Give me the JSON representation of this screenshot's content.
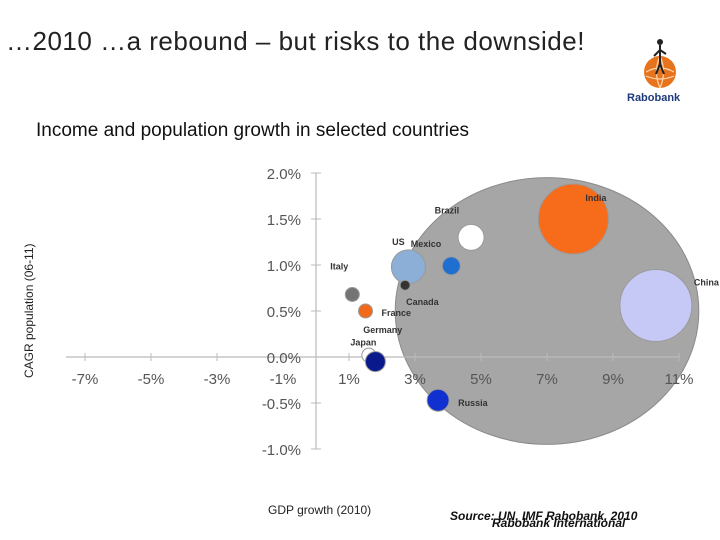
{
  "slide": {
    "title": "…2010 …a rebound – but risks to the downside!",
    "logo_text": "Rabobank",
    "source_line1": "Source: UN, IMF Rabobank, 2010",
    "source_line2": "Rabobank International"
  },
  "chart_data": {
    "type": "scatter",
    "subtype": "bubble",
    "title": "Income and population growth in selected countries",
    "xlabel": "GDP growth (2010)",
    "ylabel": "CAGR population (06-11)",
    "xlim": [
      -8.0,
      11.0
    ],
    "ylim": [
      -1.0,
      2.0
    ],
    "x_ticks": [
      {
        "value": -7,
        "label": "-7%"
      },
      {
        "value": -5,
        "label": "-5%"
      },
      {
        "value": -3,
        "label": "-3%"
      },
      {
        "value": -1,
        "label": "-1%"
      },
      {
        "value": 1,
        "label": "1%"
      },
      {
        "value": 3,
        "label": "3%"
      },
      {
        "value": 5,
        "label": "5%"
      },
      {
        "value": 7,
        "label": "7%"
      },
      {
        "value": 9,
        "label": "9%"
      },
      {
        "value": 11,
        "label": "11%"
      }
    ],
    "y_ticks": [
      {
        "value": 2.0,
        "label": "2.0%"
      },
      {
        "value": 1.5,
        "label": "1.5%"
      },
      {
        "value": 1.0,
        "label": "1.0%"
      },
      {
        "value": 0.5,
        "label": "0.5%"
      },
      {
        "value": 0.0,
        "label": "0.0%"
      },
      {
        "value": -0.5,
        "label": "-0.5%"
      },
      {
        "value": -1.0,
        "label": "-1.0%"
      }
    ],
    "grid": false,
    "points": [
      {
        "name": "India",
        "x": 7.8,
        "y": 1.5,
        "size": 35,
        "color": "#f76c1b"
      },
      {
        "name": "China",
        "x": 10.3,
        "y": 0.56,
        "size": 36,
        "color": "#c6c9f6"
      },
      {
        "name": "Brazil",
        "x": 4.7,
        "y": 1.3,
        "size": 13,
        "color": "#ffffff"
      },
      {
        "name": "US",
        "x": 2.8,
        "y": 0.98,
        "size": 17,
        "color": "#8bafd6"
      },
      {
        "name": "Mexico",
        "x": 4.1,
        "y": 0.99,
        "size": 9,
        "color": "#1f6fd0"
      },
      {
        "name": "Italy",
        "x": 1.1,
        "y": 0.68,
        "size": 7,
        "color": "#747474"
      },
      {
        "name": "Canada",
        "x": 2.7,
        "y": 0.78,
        "size": 5,
        "color": "#333333"
      },
      {
        "name": "France",
        "x": 1.5,
        "y": 0.5,
        "size": 7,
        "color": "#f06a1a"
      },
      {
        "name": "Germany",
        "x": 1.6,
        "y": 0.02,
        "size": 7,
        "color": "#ffffff"
      },
      {
        "name": "Japan",
        "x": 1.8,
        "y": -0.05,
        "size": 10,
        "color": "#0a1a8c"
      },
      {
        "name": "Russia",
        "x": 3.7,
        "y": -0.47,
        "size": 11,
        "color": "#1030d0"
      }
    ],
    "highlight_ellipse": {
      "cx": 7.0,
      "cy": 0.5,
      "rx": 4.6,
      "ry": 1.45,
      "color": "#a6a6a6"
    }
  }
}
